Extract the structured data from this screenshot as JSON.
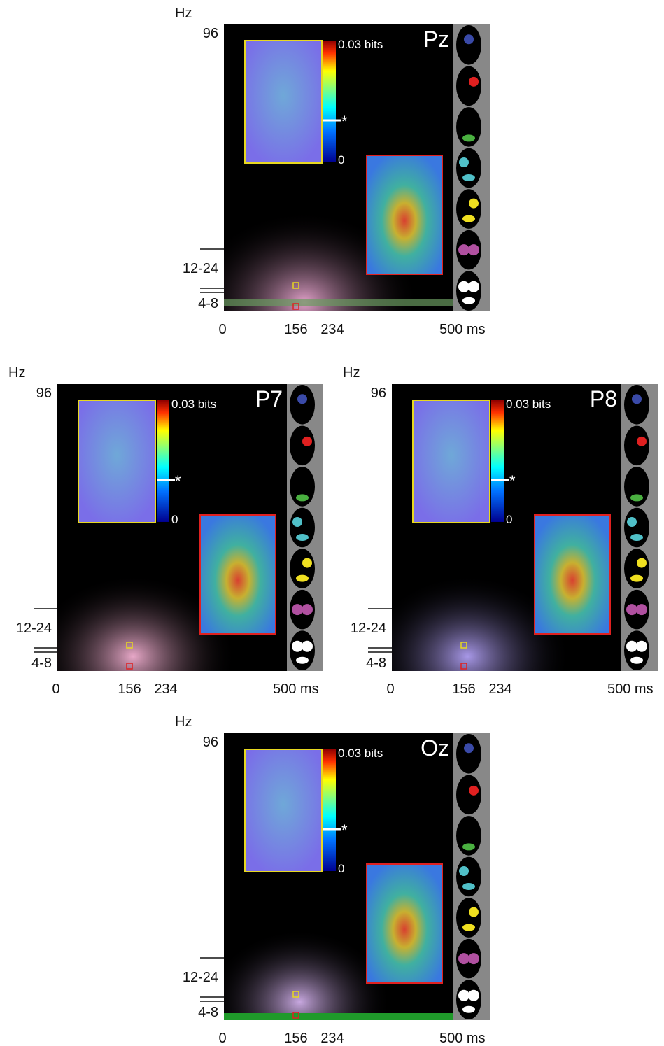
{
  "panels": [
    {
      "label": "Pz",
      "y_unit": "Hz",
      "y_labels": [
        "96",
        "12-24",
        "4-8"
      ],
      "x_labels": [
        "0",
        "156",
        "234",
        "500 ms"
      ],
      "colorbar": {
        "max": "0.03 bits",
        "min": "0",
        "marker": "*"
      }
    },
    {
      "label": "P7",
      "y_unit": "Hz",
      "y_labels": [
        "96",
        "12-24",
        "4-8"
      ],
      "x_labels": [
        "0",
        "156",
        "234",
        "500 ms"
      ],
      "colorbar": {
        "max": "0.03 bits",
        "min": "0",
        "marker": "*"
      }
    },
    {
      "label": "P8",
      "y_unit": "Hz",
      "y_labels": [
        "96",
        "12-24",
        "4-8"
      ],
      "x_labels": [
        "0",
        "156",
        "234",
        "500 ms"
      ],
      "colorbar": {
        "max": "0.03 bits",
        "min": "0",
        "marker": "*"
      }
    },
    {
      "label": "Oz",
      "y_unit": "Hz",
      "y_labels": [
        "96",
        "12-24",
        "4-8"
      ],
      "x_labels": [
        "0",
        "156",
        "234",
        "500 ms"
      ],
      "colorbar": {
        "max": "0.03 bits",
        "min": "0",
        "marker": "*"
      }
    }
  ]
}
